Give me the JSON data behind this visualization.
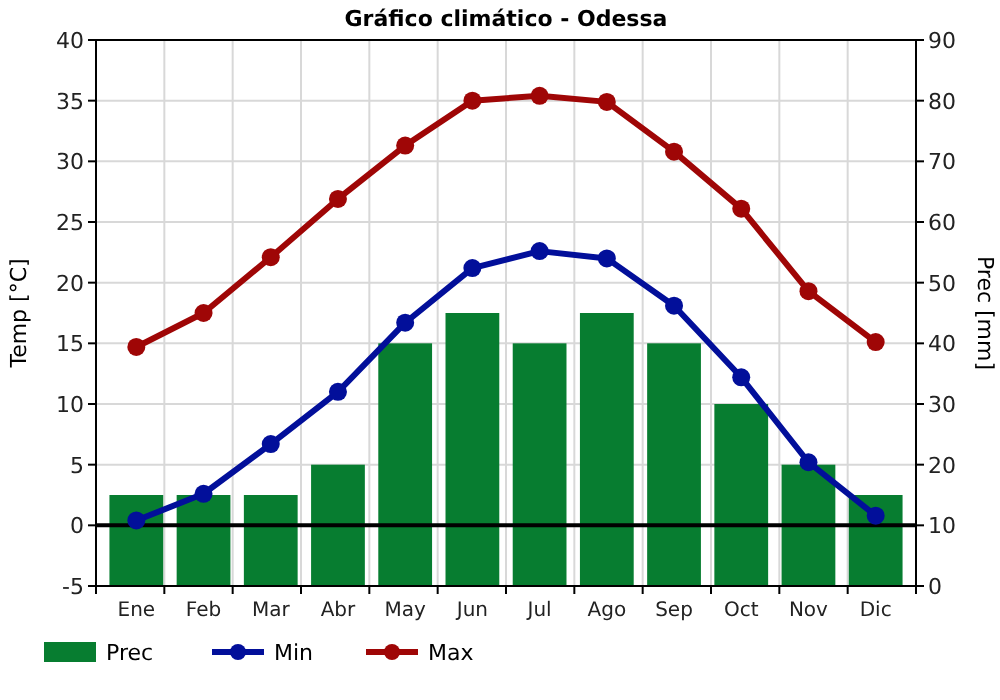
{
  "chart_data": {
    "type": "bar",
    "title": "Gráfico climático - Odessa",
    "ylabel": "Temp [°C]",
    "y2label": "Prec [mm]",
    "categories": [
      "Ene",
      "Feb",
      "Mar",
      "Abr",
      "May",
      "Jun",
      "Jul",
      "Ago",
      "Sep",
      "Oct",
      "Nov",
      "Dic"
    ],
    "series": [
      {
        "name": "Prec",
        "axis": "y2",
        "color": "#077d30",
        "values": [
          15,
          15,
          15,
          20,
          40,
          45,
          40,
          45,
          40,
          30,
          20,
          15
        ]
      },
      {
        "name": "Min",
        "type": "line",
        "color": "#020f9a",
        "values": [
          0.4,
          2.6,
          6.7,
          11,
          16.7,
          21.2,
          22.6,
          22,
          18.1,
          12.2,
          5.2,
          0.8
        ]
      },
      {
        "name": "Max",
        "type": "line",
        "color": "#9f0606",
        "values": [
          14.7,
          17.5,
          22.1,
          26.9,
          31.3,
          35,
          35.4,
          34.9,
          30.8,
          26.1,
          19.3,
          15.1
        ]
      }
    ],
    "ylim": [
      -5,
      40
    ],
    "yticks": [
      -5,
      0,
      5,
      10,
      15,
      20,
      25,
      30,
      35,
      40
    ],
    "y2lim": [
      0,
      90
    ],
    "y2ticks": [
      0,
      10,
      20,
      30,
      40,
      50,
      60,
      70,
      80,
      90
    ],
    "ref_lines": [
      {
        "axis": "y",
        "value": 0,
        "color": "#000000"
      }
    ],
    "grid": true,
    "legend": "bottom",
    "marker": "circle",
    "line_style": "solid"
  }
}
